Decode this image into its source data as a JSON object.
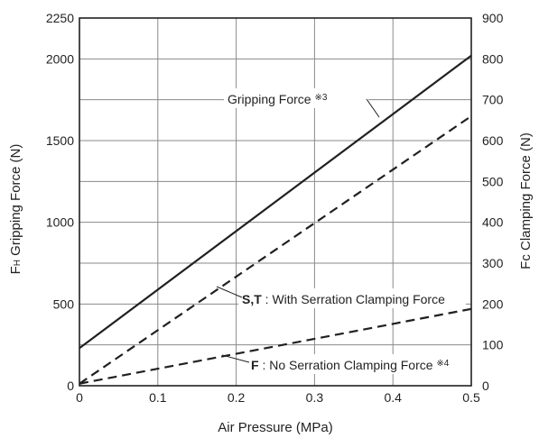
{
  "chart_data": {
    "type": "line",
    "xlabel": "Air Pressure (MPa)",
    "ylabel_left": {
      "prefix": "F",
      "sub": "H",
      "text": "  Gripping Force (N)"
    },
    "ylabel_right": {
      "prefix": "Fc",
      "text": "  Clamping Force (N)"
    },
    "xlim": [
      0,
      0.5
    ],
    "ylim_left": [
      0,
      2250
    ],
    "ylim_right": [
      0,
      900
    ],
    "x_ticks": [
      "0",
      "0.1",
      "0.2",
      "0.3",
      "0.4",
      "0.5"
    ],
    "x_tick_values": [
      0,
      0.1,
      0.2,
      0.3,
      0.4,
      0.5
    ],
    "y_left_ticks": [
      "0",
      "500",
      "1000",
      "1500",
      "2000",
      "2250"
    ],
    "y_left_tick_values": [
      0,
      500,
      1000,
      1500,
      2000,
      2250
    ],
    "y_right_ticks": [
      "0",
      "100",
      "200",
      "300",
      "400",
      "500",
      "600",
      "700",
      "800",
      "900"
    ],
    "y_right_tick_values": [
      0,
      100,
      200,
      300,
      400,
      500,
      600,
      700,
      800,
      900
    ],
    "grid": true,
    "series": [
      {
        "axis": "left",
        "style": "solid",
        "x": [
          0,
          0.5
        ],
        "y": [
          230,
          2020
        ]
      },
      {
        "axis": "right",
        "style": "dashed",
        "x": [
          0,
          0.5
        ],
        "y": [
          5,
          660
        ]
      },
      {
        "axis": "right",
        "style": "dashed",
        "x": [
          0,
          0.5
        ],
        "y": [
          5,
          188
        ]
      }
    ],
    "annotations": {
      "gripping": {
        "text": "Gripping Force ",
        "note": "※3"
      },
      "st": {
        "bold": "S,T",
        "text": " : With Serration Clamping Force"
      },
      "f": {
        "bold": "F",
        "text": " : No Serration Clamping Force ",
        "note": "※4"
      }
    }
  }
}
